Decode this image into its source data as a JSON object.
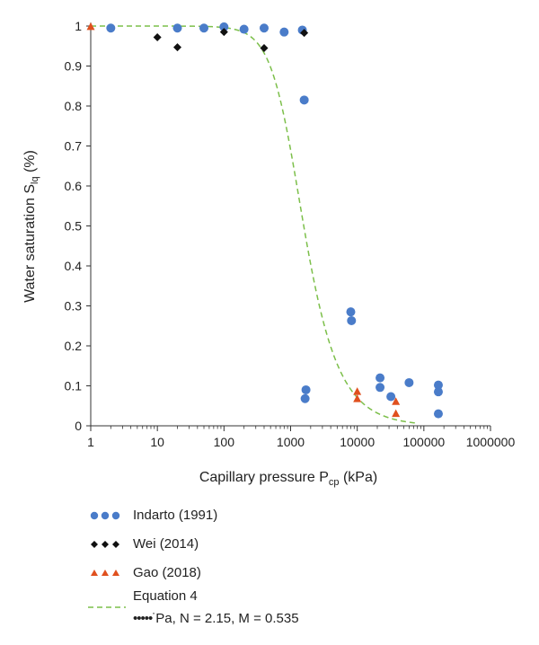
{
  "chart_data": {
    "type": "scatter",
    "title": "",
    "xlabel": "Capillary pressure P",
    "xlabel_sub": "cp",
    "xlabel_unit": " (kPa)",
    "ylabel": "Water saturation S",
    "ylabel_sub": "lq",
    "ylabel_unit": " (%)",
    "x_scale": "log",
    "xlim": [
      1,
      1000000
    ],
    "ylim": [
      0,
      1
    ],
    "x_ticks": [
      1,
      10,
      100,
      1000,
      10000,
      100000,
      1000000
    ],
    "x_tick_labels": [
      "1",
      "10",
      "100",
      "1000",
      "10000",
      "100000",
      "1000000"
    ],
    "y_ticks": [
      0,
      0.1,
      0.2,
      0.3,
      0.4,
      0.5,
      0.6,
      0.7,
      0.8,
      0.9,
      1
    ],
    "y_tick_labels": [
      "0",
      "0.1",
      "0.2",
      "0.3",
      "0.4",
      "0.5",
      "0.6",
      "0.7",
      "0.8",
      "0.9",
      "1"
    ],
    "grid": false,
    "legend_position": "below",
    "series": [
      {
        "name": "Indarto (1991)",
        "marker": "circle",
        "color": "#4a7cc9",
        "points": [
          [
            2,
            0.995
          ],
          [
            20,
            0.995
          ],
          [
            50,
            0.995
          ],
          [
            100,
            0.998
          ],
          [
            200,
            0.992
          ],
          [
            400,
            0.995
          ],
          [
            800,
            0.985
          ],
          [
            1500,
            0.99
          ],
          [
            1600,
            0.815
          ],
          [
            1700,
            0.09
          ],
          [
            1650,
            0.068
          ],
          [
            8000,
            0.285
          ],
          [
            8200,
            0.263
          ],
          [
            22000,
            0.12
          ],
          [
            22000,
            0.096
          ],
          [
            32000,
            0.073
          ],
          [
            60000,
            0.108
          ],
          [
            165000,
            0.102
          ],
          [
            165000,
            0.085
          ],
          [
            165000,
            0.03
          ]
        ]
      },
      {
        "name": "Wei (2014)",
        "marker": "diamond",
        "color": "#111111",
        "points": [
          [
            10,
            0.972
          ],
          [
            20,
            0.947
          ],
          [
            100,
            0.985
          ],
          [
            400,
            0.945
          ],
          [
            1600,
            0.983
          ]
        ]
      },
      {
        "name": "Gao (2018)",
        "marker": "triangle",
        "color": "#e0501e",
        "points": [
          [
            1,
            0.998
          ],
          [
            10000,
            0.085
          ],
          [
            10000,
            0.067
          ],
          [
            38000,
            0.06
          ],
          [
            38000,
            0.03
          ]
        ]
      },
      {
        "name": "Equation 4",
        "marker": "dashed-line",
        "color": "#7cbf4a",
        "fn": {
          "Pa": 1000,
          "N": 2.15,
          "M": 0.535
        },
        "x_range": [
          1,
          80000
        ]
      }
    ],
    "legend_extra": "Pa, N = 2.15, M = 0.535"
  }
}
